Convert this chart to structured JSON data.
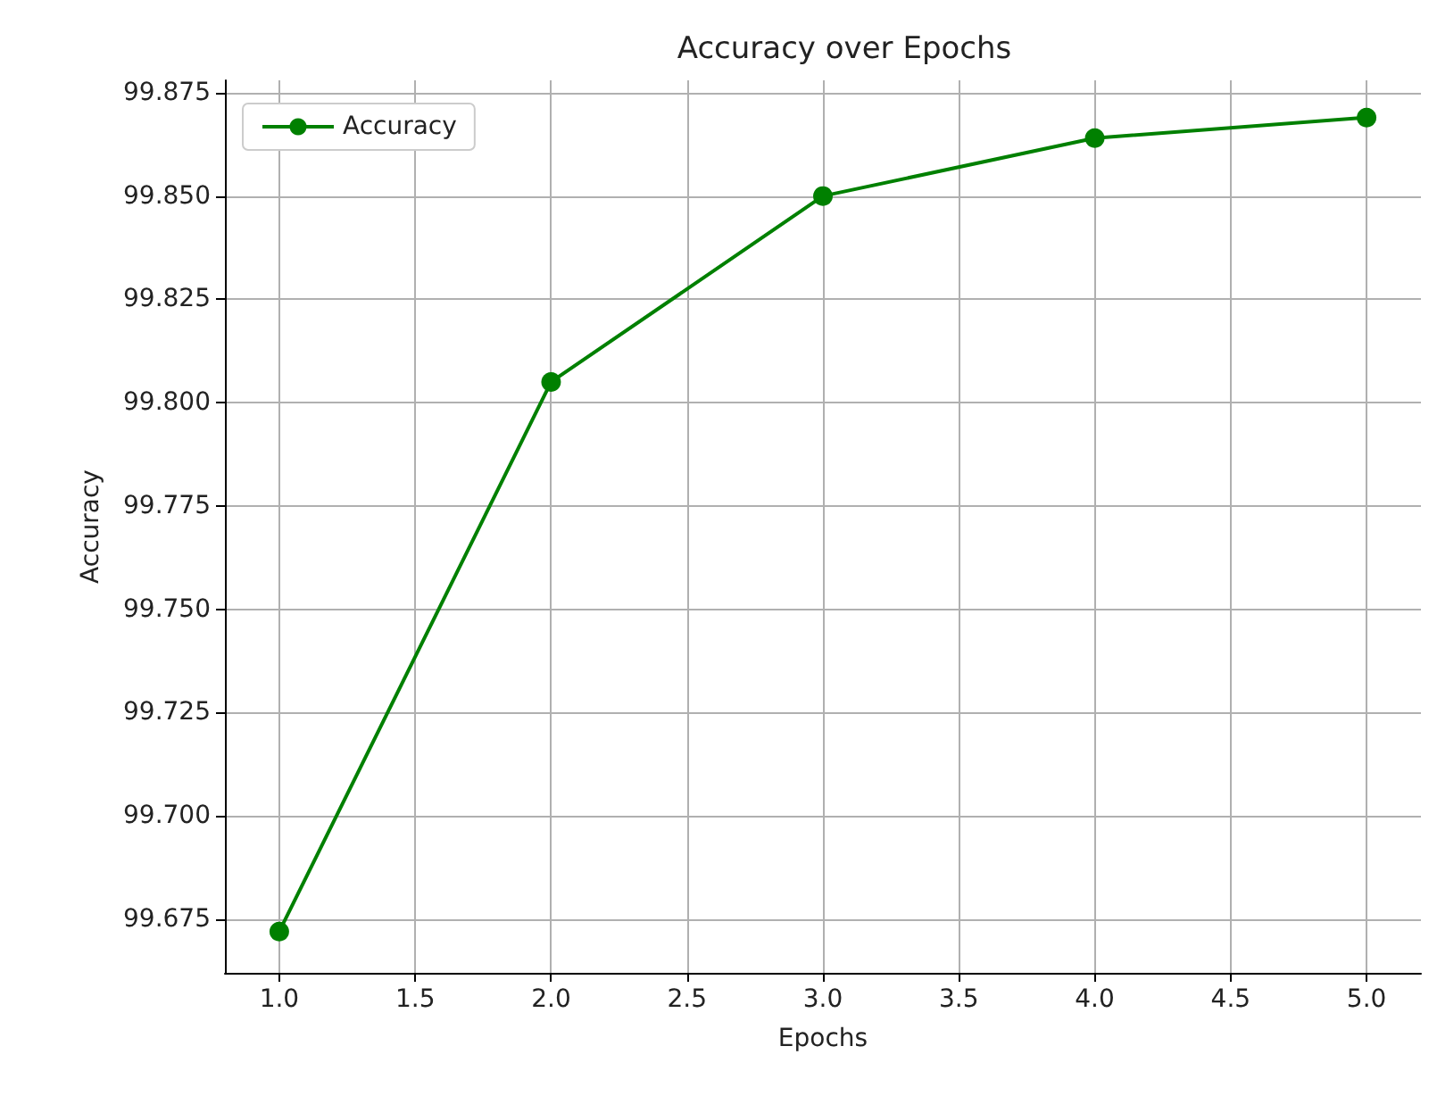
{
  "chart_data": {
    "type": "line",
    "title": "Accuracy over Epochs",
    "xlabel": "Epochs",
    "ylabel": "Accuracy",
    "x": [
      1,
      2,
      3,
      4,
      5
    ],
    "series": [
      {
        "name": "Accuracy",
        "color": "#008000",
        "values": [
          99.672,
          99.805,
          99.85,
          99.864,
          99.869
        ]
      }
    ],
    "xlim": [
      0.8,
      5.2
    ],
    "xticks": [
      {
        "value": 1,
        "label": "1.0"
      },
      {
        "value": 1.5,
        "label": "1.5"
      },
      {
        "value": 2,
        "label": "2.0"
      },
      {
        "value": 2.5,
        "label": "2.5"
      },
      {
        "value": 3,
        "label": "3.0"
      },
      {
        "value": 3.5,
        "label": "3.5"
      },
      {
        "value": 4,
        "label": "4.0"
      },
      {
        "value": 4.5,
        "label": "4.5"
      },
      {
        "value": 5,
        "label": "5.0"
      }
    ],
    "ylim": [
      99.662,
      99.878
    ],
    "yticks": [
      {
        "value": 99.675,
        "label": "99.675"
      },
      {
        "value": 99.7,
        "label": "99.700"
      },
      {
        "value": 99.725,
        "label": "99.725"
      },
      {
        "value": 99.75,
        "label": "99.750"
      },
      {
        "value": 99.775,
        "label": "99.775"
      },
      {
        "value": 99.8,
        "label": "99.800"
      },
      {
        "value": 99.825,
        "label": "99.825"
      },
      {
        "value": 99.85,
        "label": "99.850"
      },
      {
        "value": 99.875,
        "label": "99.875"
      }
    ],
    "grid": true,
    "legend": "top left",
    "marker": "circle",
    "line_style": "solid"
  }
}
